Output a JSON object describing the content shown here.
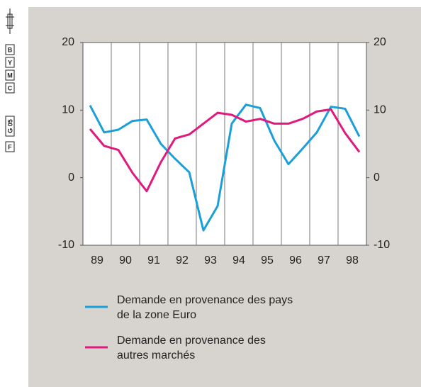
{
  "print_marks": [
    "B",
    "Y",
    "M",
    "C",
    "G 05",
    "F"
  ],
  "chart_data": {
    "type": "line",
    "x": [
      89.25,
      89.75,
      90.25,
      90.75,
      91.25,
      91.75,
      92.25,
      92.75,
      93.25,
      93.75,
      94.25,
      94.75,
      95.25,
      95.75,
      96.25,
      96.75,
      97.25,
      97.75,
      98.25,
      98.75
    ],
    "series": [
      {
        "name": "Demande en provenance des pays\nde la zone Euro",
        "color": "#1a9fd9",
        "values": [
          10.7,
          6.7,
          7.1,
          8.4,
          8.6,
          5.0,
          2.8,
          0.8,
          -7.8,
          -4.2,
          8.0,
          10.8,
          10.3,
          5.5,
          2.0,
          4.3,
          6.7,
          10.5,
          10.2,
          6.1
        ]
      },
      {
        "name": "Demande en provenance des\nautres marchés",
        "color": "#e0197d",
        "values": [
          7.2,
          4.7,
          4.1,
          0.7,
          -2.0,
          2.3,
          5.8,
          6.4,
          8.0,
          9.6,
          9.3,
          8.3,
          8.7,
          8.0,
          8.0,
          8.7,
          9.8,
          10.1,
          6.6,
          3.8
        ]
      }
    ],
    "xlim": [
      89,
      99
    ],
    "xticks": [
      {
        "value": 89.5,
        "label": "89"
      },
      {
        "value": 90.5,
        "label": "90"
      },
      {
        "value": 91.5,
        "label": "91"
      },
      {
        "value": 92.5,
        "label": "92"
      },
      {
        "value": 93.5,
        "label": "93"
      },
      {
        "value": 94.5,
        "label": "94"
      },
      {
        "value": 95.5,
        "label": "95"
      },
      {
        "value": 96.5,
        "label": "96"
      },
      {
        "value": 97.5,
        "label": "97"
      },
      {
        "value": 98.5,
        "label": "98"
      }
    ],
    "ylim": [
      -10,
      20
    ],
    "yticks": [
      -10,
      0,
      10,
      20
    ],
    "y2lim": [
      -10,
      20
    ],
    "y2ticks": [
      -10,
      0,
      10,
      20
    ],
    "grid": true
  }
}
